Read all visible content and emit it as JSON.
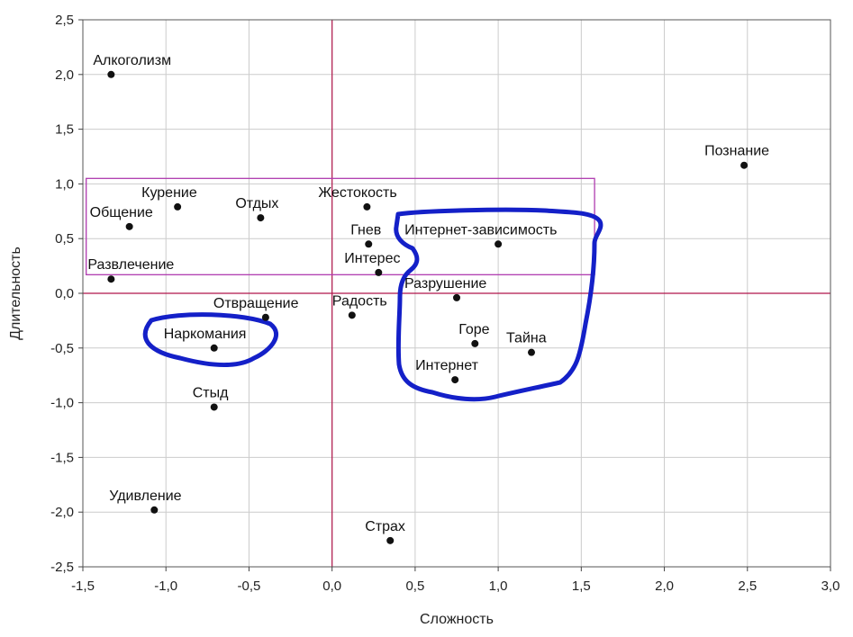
{
  "chart_data": {
    "type": "scatter",
    "title": "",
    "xlabel": "Сложность",
    "ylabel": "Длительность",
    "xlim": [
      -1.5,
      3.0
    ],
    "ylim": [
      -2.5,
      2.5
    ],
    "x_ticks": [
      "-1,5",
      "-1,0",
      "-0,5",
      "0,0",
      "0,5",
      "1,0",
      "1,5",
      "2,0",
      "2,5",
      "3,0"
    ],
    "y_ticks": [
      "2,5",
      "2,0",
      "1,5",
      "1,0",
      "0,5",
      "0,0",
      "-0,5",
      "-1,0",
      "-1,5",
      "-2,0",
      "-2,5"
    ],
    "grid": true,
    "colors": {
      "points": "#111111",
      "reference_lines": "#b0154a",
      "highlight_rectangle": "#b03cb0",
      "outlines": "#1420c8",
      "grid": "#cccccc"
    },
    "reference_lines": {
      "x": 0,
      "y": 0
    },
    "highlight_region": {
      "x": [
        -1.48,
        1.58
      ],
      "y": [
        0.17,
        1.05
      ]
    },
    "points": [
      {
        "label": "Алкоголизм",
        "x": -1.33,
        "y": 2.0
      },
      {
        "label": "Познание",
        "x": 2.48,
        "y": 1.17
      },
      {
        "label": "Курение",
        "x": -0.93,
        "y": 0.79
      },
      {
        "label": "Общение",
        "x": -1.22,
        "y": 0.61
      },
      {
        "label": "Отдых",
        "x": -0.43,
        "y": 0.69
      },
      {
        "label": "Жестокость",
        "x": 0.21,
        "y": 0.79
      },
      {
        "label": "Гнев",
        "x": 0.22,
        "y": 0.45
      },
      {
        "label": "Интернет-зависимость",
        "x": 1.0,
        "y": 0.45
      },
      {
        "label": "Интерес",
        "x": 0.28,
        "y": 0.19
      },
      {
        "label": "Развлечение",
        "x": -1.33,
        "y": 0.13
      },
      {
        "label": "Разрушение",
        "x": 0.75,
        "y": -0.04
      },
      {
        "label": "Отвращение",
        "x": -0.4,
        "y": -0.22
      },
      {
        "label": "Радость",
        "x": 0.12,
        "y": -0.2
      },
      {
        "label": "Наркомания",
        "x": -0.71,
        "y": -0.5
      },
      {
        "label": "Горе",
        "x": 0.86,
        "y": -0.46
      },
      {
        "label": "Тайна",
        "x": 1.2,
        "y": -0.54
      },
      {
        "label": "Интернет",
        "x": 0.74,
        "y": -0.79
      },
      {
        "label": "Стыд",
        "x": -0.71,
        "y": -1.04
      },
      {
        "label": "Удивление",
        "x": -1.07,
        "y": -1.98
      },
      {
        "label": "Страх",
        "x": 0.35,
        "y": -2.26
      }
    ]
  }
}
